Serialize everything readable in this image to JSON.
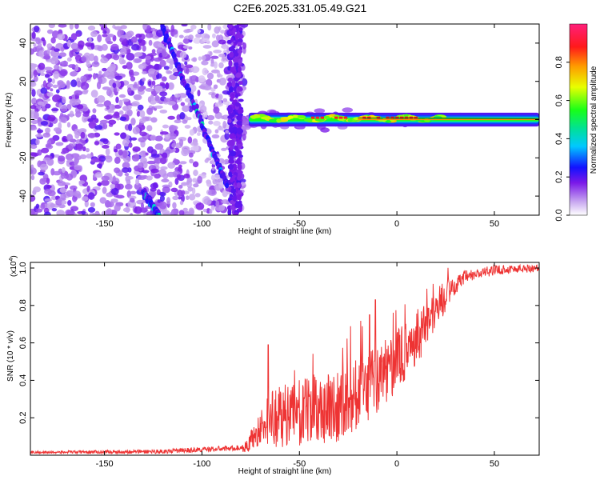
{
  "title": "C2E6.2025.331.05.49.G21",
  "chart_data": [
    {
      "type": "heatmap",
      "name": "spectrogram",
      "xlabel": "Height of straight line (km)",
      "ylabel": "Frequency (Hz)",
      "xlim": [
        -188,
        73
      ],
      "ylim": [
        -50,
        50
      ],
      "xticks": [
        -150,
        -100,
        -50,
        0,
        50
      ],
      "xtick_labels": [
        "-150",
        "-100",
        "-50",
        "0",
        "50"
      ],
      "yticks": [
        -40,
        -20,
        0,
        20,
        40
      ],
      "ytick_labels": [
        "-40",
        "-20",
        "0",
        "20",
        "40"
      ],
      "colorbar": {
        "label": "Normalized spectral amplitude",
        "range": [
          0,
          1
        ],
        "ticks": [
          0.0,
          0.2,
          0.4,
          0.6,
          0.8
        ],
        "tick_labels": [
          "0.0",
          "0.2",
          "0.4",
          "0.6",
          "0.8"
        ]
      },
      "features": {
        "noise_region_x": [
          -188,
          -78
        ],
        "signal_line_x": [
          -78,
          73
        ],
        "signal_line_freq": 0,
        "diagonal_streak_1": [
          [
            -121,
            50
          ],
          [
            -87,
            -35
          ]
        ],
        "diagonal_streak_2": [
          [
            -130,
            -38
          ],
          [
            -122,
            -50
          ]
        ],
        "vertical_streak_x": -80
      }
    },
    {
      "type": "line",
      "name": "snr",
      "xlabel": "Height of straight line (km)",
      "ylabel": "SNR (10 * v/v)",
      "multiplier_label": "(x10",
      "multiplier_exp": "4",
      "multiplier_close": ")",
      "xlim": [
        -188,
        73
      ],
      "ylim": [
        0,
        1.03
      ],
      "xticks": [
        -150,
        -100,
        -50,
        0,
        50
      ],
      "xtick_labels": [
        "-150",
        "-100",
        "-50",
        "0",
        "50"
      ],
      "yticks": [
        0.2,
        0.4,
        0.6,
        0.8,
        1.0
      ],
      "ytick_labels": [
        "0.2",
        "0.4",
        "0.6",
        "0.8",
        "1.0"
      ],
      "color": "#ee3333",
      "trend_x": [
        -188,
        -120,
        -90,
        -78,
        -67,
        -55,
        -40,
        -30,
        -20,
        -10,
        0,
        10,
        20,
        27,
        35,
        50,
        73
      ],
      "trend_y": [
        0.015,
        0.02,
        0.035,
        0.04,
        0.18,
        0.22,
        0.24,
        0.27,
        0.34,
        0.4,
        0.5,
        0.62,
        0.78,
        0.88,
        0.95,
        0.99,
        1.0
      ],
      "noise_amp_x": [
        -188,
        -80,
        -66,
        -45,
        -20,
        0,
        20,
        28,
        40,
        73
      ],
      "noise_amp_y": [
        0.006,
        0.015,
        0.12,
        0.14,
        0.16,
        0.13,
        0.09,
        0.05,
        0.03,
        0.02
      ],
      "spikes": [
        [
          -66,
          0.59
        ],
        [
          -14,
          0.75
        ],
        [
          -11,
          0.83
        ]
      ]
    }
  ]
}
